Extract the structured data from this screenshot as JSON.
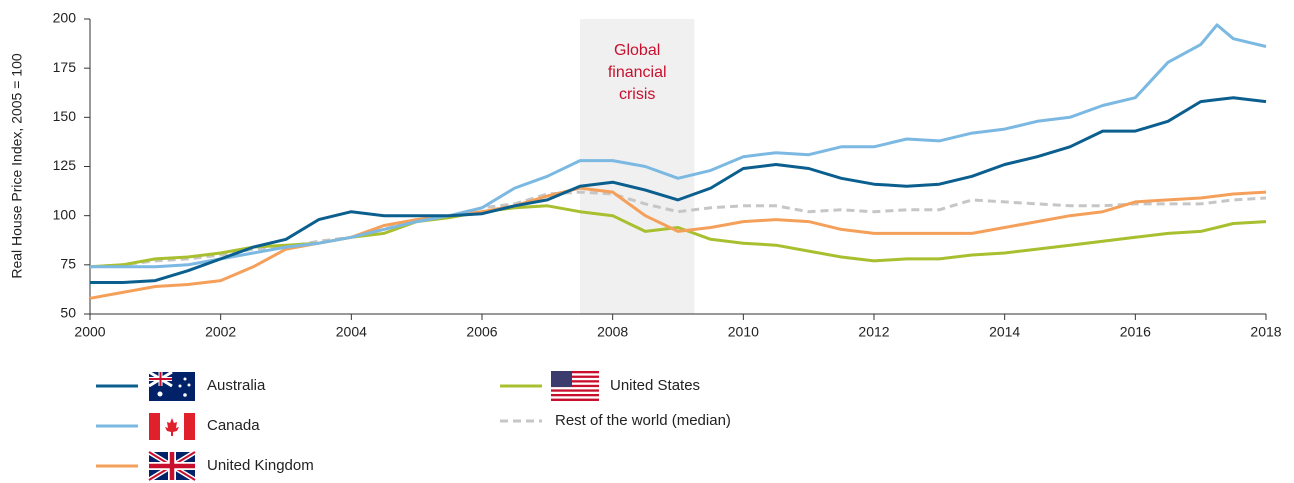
{
  "chart_data": {
    "type": "line",
    "y_axis_label": "Real House Price Index, 2005 = 100",
    "annotation": {
      "lines": [
        "Global",
        "financial",
        "crisis"
      ],
      "x_range": [
        2007.5,
        2009.25
      ],
      "color": "#c8102e",
      "shade_color": "#f0f0f0"
    },
    "x": [
      2000,
      2000.5,
      2001,
      2001.5,
      2002,
      2002.5,
      2003,
      2003.5,
      2004,
      2004.5,
      2005,
      2005.5,
      2006,
      2006.5,
      2007,
      2007.5,
      2008,
      2008.5,
      2009,
      2009.5,
      2010,
      2010.5,
      2011,
      2011.5,
      2012,
      2012.5,
      2013,
      2013.5,
      2014,
      2014.5,
      2015,
      2015.5,
      2016,
      2016.5,
      2017,
      2017.25,
      2017.5,
      2018
    ],
    "series": [
      {
        "name": "Australia",
        "color": "#0b5f8f",
        "style": "solid",
        "values": [
          66,
          66,
          67,
          72,
          78,
          84,
          88,
          98,
          102,
          100,
          100,
          100,
          101,
          105,
          108,
          115,
          117,
          113,
          108,
          114,
          124,
          126,
          124,
          119,
          116,
          115,
          116,
          120,
          126,
          130,
          135,
          143,
          143,
          148,
          158,
          159,
          160,
          158
        ]
      },
      {
        "name": "Canada",
        "color": "#7bb8e2",
        "style": "solid",
        "values": [
          74,
          74,
          74,
          75,
          78,
          81,
          84,
          86,
          89,
          93,
          97,
          100,
          104,
          114,
          120,
          128,
          128,
          125,
          119,
          123,
          130,
          132,
          131,
          135,
          135,
          139,
          138,
          142,
          144,
          148,
          150,
          156,
          160,
          178,
          187,
          197,
          190,
          186
        ]
      },
      {
        "name": "United Kingdom",
        "color": "#f5a05a",
        "style": "solid",
        "values": [
          58,
          61,
          64,
          65,
          67,
          74,
          83,
          86,
          89,
          95,
          98,
          100,
          102,
          105,
          110,
          114,
          112,
          100,
          92,
          94,
          97,
          98,
          97,
          93,
          91,
          91,
          91,
          91,
          94,
          97,
          100,
          102,
          107,
          108,
          109,
          110,
          111,
          112
        ]
      },
      {
        "name": "United States",
        "color": "#a9bf2f",
        "style": "solid",
        "values": [
          74,
          75,
          78,
          79,
          81,
          84,
          85,
          86,
          89,
          91,
          97,
          99,
          102,
          104,
          105,
          102,
          100,
          92,
          94,
          88,
          86,
          85,
          82,
          79,
          77,
          78,
          78,
          80,
          81,
          83,
          85,
          87,
          89,
          91,
          92,
          94,
          96,
          97
        ]
      },
      {
        "name": "Rest of the world (median)",
        "color": "#c6c6c6",
        "style": "dashed",
        "values": [
          74,
          75,
          77,
          78,
          80,
          83,
          84,
          87,
          89,
          93,
          98,
          100,
          104,
          106,
          111,
          112,
          111,
          106,
          102,
          104,
          105,
          105,
          102,
          103,
          102,
          103,
          103,
          108,
          107,
          106,
          105,
          105,
          106,
          106,
          106,
          107,
          108,
          109
        ]
      }
    ],
    "xlim": [
      2000,
      2018
    ],
    "xticks": [
      2000,
      2002,
      2004,
      2006,
      2008,
      2010,
      2012,
      2014,
      2016,
      2018
    ],
    "ylim": [
      50,
      200
    ],
    "yticks": [
      50,
      75,
      100,
      125,
      150,
      175,
      200
    ],
    "grid": false
  }
}
